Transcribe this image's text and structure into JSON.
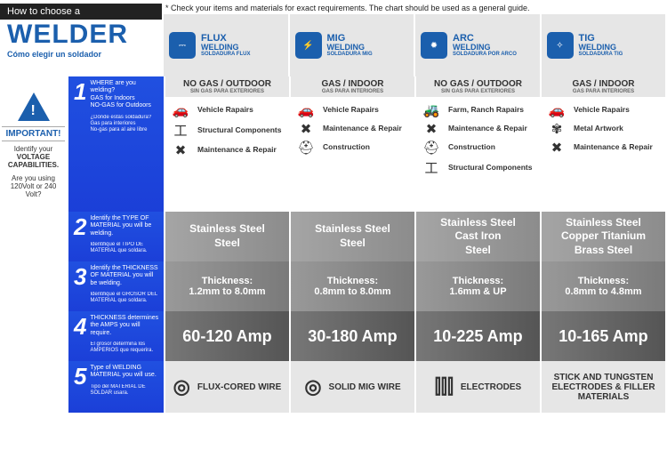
{
  "brand": {
    "bar": "How to choose a",
    "big": "WELDER",
    "sub": "Cómo elegir un soldador"
  },
  "footnote": "* Check your items and materials for exact requirements. The chart should be used as a general guide.",
  "types": [
    {
      "title": "FLUX",
      "sub1": "WELDING",
      "sub2": "SOLDADURA FLUX",
      "ico": "⎓"
    },
    {
      "title": "MIG",
      "sub1": "WELDING",
      "sub2": "SOLDADURA MIG",
      "ico": "⚡"
    },
    {
      "title": "ARC",
      "sub1": "WELDING",
      "sub2": "SOLDADURA POR ARCO",
      "ico": "✹"
    },
    {
      "title": "TIG",
      "sub1": "WELDING",
      "sub2": "SOLDADURA TIG",
      "ico": "✧"
    }
  ],
  "side": {
    "imp": "IMPORTANT!",
    "l1": "Identify your",
    "l2": "VOLTAGE CAPABILITIES.",
    "l3": "Are you using 120Volt or 240 Volt?"
  },
  "rows": {
    "r1": {
      "num": "1",
      "txt": "WHERE are you welding?\nGAS for Indoors\nNO-GAS for Outdoors",
      "sub": "¿Dónde estás soldadura?\nGas para interiores\nNo-gas para al aire libre"
    },
    "r2": {
      "num": "2",
      "txt": "Identify the TYPE OF MATERIAL you will be welding.",
      "sub": "Identifique el TIPO DE MATERIAL que soldara."
    },
    "r3": {
      "num": "3",
      "txt": "Identify the THICKNESS OF MATERIAL you will be welding.",
      "sub": "Identifique el GROSOR DEL MATERIAL que soldara."
    },
    "r4": {
      "num": "4",
      "txt": "THICKNESS determines the AMPS you will require.",
      "sub": "El grosor determina los AMPERIOS que requerira."
    },
    "r5": {
      "num": "5",
      "txt": "Type of WELDING MATERIAL you will use.",
      "sub": "Tipo del MATERIAL DE SOLDAR usara."
    }
  },
  "uses": [
    {
      "hd": "NO GAS / OUTDOOR",
      "sub": "SIN GAS PARA EXTERIORES",
      "items": [
        {
          "i": "🚗",
          "t": "Vehicle Rapairs"
        },
        {
          "i": "工",
          "t": "Structural Components"
        },
        {
          "i": "✖",
          "t": "Maintenance & Repair"
        }
      ]
    },
    {
      "hd": "GAS / INDOOR",
      "sub": "GAS PARA INTERIORES",
      "items": [
        {
          "i": "🚗",
          "t": "Vehicle Rapairs"
        },
        {
          "i": "✖",
          "t": "Maintenance & Repair"
        },
        {
          "i": "⛑",
          "t": "Construction"
        }
      ]
    },
    {
      "hd": "NO GAS / OUTDOOR",
      "sub": "SIN GAS PARA EXTERIORES",
      "items": [
        {
          "i": "🚜",
          "t": "Farm, Ranch Rapairs"
        },
        {
          "i": "✖",
          "t": "Maintenance & Repair"
        },
        {
          "i": "⛑",
          "t": "Construction"
        },
        {
          "i": "工",
          "t": "Structural Components"
        }
      ]
    },
    {
      "hd": "GAS / INDOOR",
      "sub": "GAS PARA INTERIORES",
      "items": [
        {
          "i": "🚗",
          "t": "Vehicle Rapairs"
        },
        {
          "i": "✾",
          "t": "Metal Artwork"
        },
        {
          "i": "✖",
          "t": "Maintenance & Repair"
        }
      ]
    }
  ],
  "materials": [
    "Stainless Steel\nSteel",
    "Stainless Steel\nSteel",
    "Stainless Steel\nCast Iron\nSteel",
    "Stainless Steel\nCopper   Titanium\nBrass   Steel"
  ],
  "thickness": [
    "Thickness:\n1.2mm to 8.0mm",
    "Thickness:\n0.8mm to 8.0mm",
    "Thickness:\n1.6mm & UP",
    "Thickness:\n0.8mm to 4.8mm"
  ],
  "amps": [
    "60-120 Amp",
    "30-180 Amp",
    "10-225 Amp",
    "10-165 Amp"
  ],
  "wires": [
    {
      "i": "◎",
      "t": "FLUX-CORED WIRE"
    },
    {
      "i": "◎",
      "t": "SOLID MIG WIRE"
    },
    {
      "i": "⫿⫿⫿",
      "t": "ELECTRODES"
    },
    {
      "i": "",
      "t": "STICK AND TUNGSTEN ELECTRODES & FILLER MATERIALS"
    }
  ]
}
